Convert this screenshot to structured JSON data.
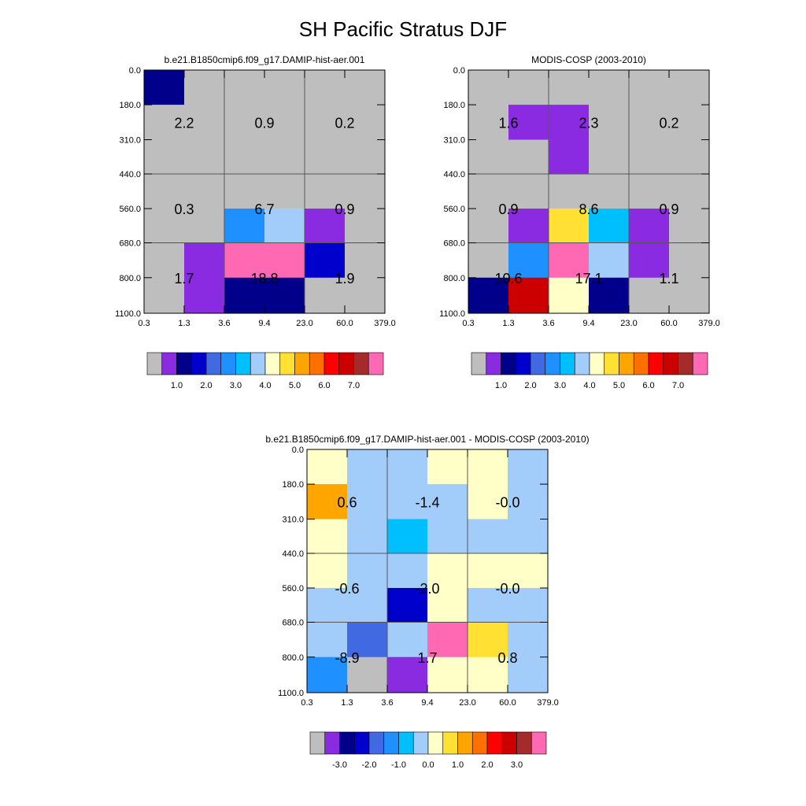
{
  "figure": {
    "title": "SH Pacific Stratus DJF"
  },
  "colors": {
    "bg": "#bebebe",
    "grid": "#555555",
    "abs_palette": [
      "#bebebe",
      "#8a2be2",
      "#00008b",
      "#0000cd",
      "#4169e1",
      "#1e90ff",
      "#00bfff",
      "#a2cdfa",
      "#ffffc8",
      "#ffe033",
      "#ffa500",
      "#ff7000",
      "#ff0000",
      "#cc0000",
      "#a52a2a",
      "#ff69b4"
    ],
    "diff_palette": [
      "#bebebe",
      "#8a2be2",
      "#00008b",
      "#0000cd",
      "#4169e1",
      "#1e90ff",
      "#00bfff",
      "#a2cdfa",
      "#ffffc8",
      "#ffe033",
      "#ffa500",
      "#ff7000",
      "#ff0000",
      "#cc0000",
      "#a52a2a",
      "#ff69b4"
    ]
  },
  "chart_data": [
    {
      "type": "heatmap",
      "title": "b.e21.B1850cmip6.f09_g17.DAMIP-hist-aer.001",
      "x_ticks": [
        "0.3",
        "1.3",
        "3.6",
        "9.4",
        "23.0",
        "60.0",
        "379.0"
      ],
      "y_ticks": [
        "0.0",
        "180.0",
        "310.0",
        "440.0",
        "560.0",
        "680.0",
        "800.0",
        "1100.0"
      ],
      "y_reversed": true,
      "grid": true,
      "colorbar": {
        "labels": [
          "1.0",
          "2.0",
          "3.0",
          "4.0",
          "5.0",
          "6.0",
          "7.0"
        ],
        "label_positions": [
          2,
          4,
          6,
          8,
          10,
          12,
          14
        ]
      },
      "cells": [
        [
          2,
          0,
          0,
          0,
          0,
          0
        ],
        [
          0,
          0,
          0,
          0,
          0,
          0
        ],
        [
          0,
          0,
          0,
          0,
          0,
          0
        ],
        [
          0,
          0,
          0,
          0,
          0,
          0
        ],
        [
          0,
          0,
          5,
          7,
          1,
          0
        ],
        [
          0,
          1,
          15,
          15,
          3,
          0
        ],
        [
          0,
          1,
          2,
          2,
          0,
          0
        ]
      ],
      "annotations": [
        {
          "x": 1,
          "y": 1.5,
          "text": "2.2"
        },
        {
          "x": 3,
          "y": 1.5,
          "text": "0.9"
        },
        {
          "x": 5,
          "y": 1.5,
          "text": "0.2"
        },
        {
          "x": 1,
          "y": 4,
          "text": "0.3"
        },
        {
          "x": 3,
          "y": 4,
          "text": "6.7"
        },
        {
          "x": 5,
          "y": 4,
          "text": "0.9"
        },
        {
          "x": 1,
          "y": 6,
          "text": "1.7"
        },
        {
          "x": 3,
          "y": 6,
          "text": "18.8"
        },
        {
          "x": 5,
          "y": 6,
          "text": "1.9"
        }
      ]
    },
    {
      "type": "heatmap",
      "title": "MODIS-COSP (2003-2010)",
      "x_ticks": [
        "0.3",
        "1.3",
        "3.6",
        "9.4",
        "23.0",
        "60.0",
        "379.0"
      ],
      "y_ticks": [
        "0.0",
        "180.0",
        "310.0",
        "440.0",
        "560.0",
        "680.0",
        "800.0",
        "1100.0"
      ],
      "y_reversed": true,
      "grid": true,
      "colorbar": {
        "labels": [
          "1.0",
          "2.0",
          "3.0",
          "4.0",
          "5.0",
          "6.0",
          "7.0"
        ],
        "label_positions": [
          2,
          4,
          6,
          8,
          10,
          12,
          14
        ]
      },
      "cells": [
        [
          0,
          0,
          0,
          0,
          0,
          0
        ],
        [
          0,
          1,
          1,
          0,
          0,
          0
        ],
        [
          0,
          0,
          1,
          0,
          0,
          0
        ],
        [
          0,
          0,
          0,
          0,
          0,
          0
        ],
        [
          0,
          1,
          9,
          6,
          1,
          0
        ],
        [
          0,
          5,
          15,
          7,
          1,
          0
        ],
        [
          2,
          13,
          8,
          2,
          0,
          0
        ]
      ],
      "annotations": [
        {
          "x": 1,
          "y": 1.5,
          "text": "1.6"
        },
        {
          "x": 3,
          "y": 1.5,
          "text": "2.3"
        },
        {
          "x": 5,
          "y": 1.5,
          "text": "0.2"
        },
        {
          "x": 1,
          "y": 4,
          "text": "0.9"
        },
        {
          "x": 3,
          "y": 4,
          "text": "8.6"
        },
        {
          "x": 5,
          "y": 4,
          "text": "0.9"
        },
        {
          "x": 1,
          "y": 6,
          "text": "10.6"
        },
        {
          "x": 3,
          "y": 6,
          "text": "17.1"
        },
        {
          "x": 5,
          "y": 6,
          "text": "1.1"
        }
      ]
    },
    {
      "type": "heatmap",
      "title": "b.e21.B1850cmip6.f09_g17.DAMIP-hist-aer.001 - MODIS-COSP (2003-2010)",
      "x_ticks": [
        "0.3",
        "1.3",
        "3.6",
        "9.4",
        "23.0",
        "60.0",
        "379.0"
      ],
      "y_ticks": [
        "0.0",
        "180.0",
        "310.0",
        "440.0",
        "560.0",
        "680.0",
        "800.0",
        "1100.0"
      ],
      "y_reversed": true,
      "grid": true,
      "colorbar": {
        "labels": [
          "-3.0",
          "-2.0",
          "-1.0",
          "0.0",
          "1.0",
          "2.0",
          "3.0"
        ],
        "label_positions": [
          2,
          4,
          6,
          8,
          10,
          12,
          14
        ]
      },
      "cells": [
        [
          8,
          7,
          7,
          8,
          8,
          7
        ],
        [
          10,
          7,
          7,
          7,
          8,
          7
        ],
        [
          8,
          7,
          6,
          7,
          7,
          7
        ],
        [
          8,
          7,
          7,
          8,
          8,
          8
        ],
        [
          7,
          7,
          3,
          8,
          7,
          7
        ],
        [
          7,
          4,
          7,
          15,
          9,
          7
        ],
        [
          5,
          0,
          1,
          8,
          8,
          7
        ]
      ],
      "annotations": [
        {
          "x": 1,
          "y": 1.5,
          "text": "0.6"
        },
        {
          "x": 3,
          "y": 1.5,
          "text": "-1.4"
        },
        {
          "x": 5,
          "y": 1.5,
          "text": "-0.0"
        },
        {
          "x": 1,
          "y": 4,
          "text": "-0.6"
        },
        {
          "x": 3,
          "y": 4,
          "text": "-2.0"
        },
        {
          "x": 5,
          "y": 4,
          "text": "-0.0"
        },
        {
          "x": 1,
          "y": 6,
          "text": "-8.9"
        },
        {
          "x": 3,
          "y": 6,
          "text": "1.7"
        },
        {
          "x": 5,
          "y": 6,
          "text": "0.8"
        }
      ]
    }
  ]
}
